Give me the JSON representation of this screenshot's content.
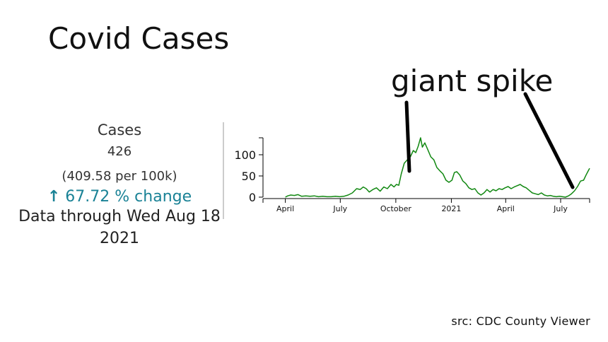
{
  "header": {
    "title": "Covid Cases"
  },
  "annotation": {
    "label": "giant spike"
  },
  "summary": {
    "metric": "Cases",
    "count": "426",
    "rate": "(409.58 per 100k)",
    "change_arrow": "↑",
    "change": "67.72 % change",
    "through": "Data through Wed Aug 18 2021"
  },
  "source": "src: CDC County Viewer",
  "colors": {
    "line": "#118811",
    "change": "#1a8296",
    "axis": "#000000"
  },
  "chart_data": {
    "type": "line",
    "title": "",
    "xlabel": "",
    "ylabel": "",
    "xlim": [
      "2020-02-24",
      "2021-08-18"
    ],
    "ylim": [
      0,
      140
    ],
    "yticks": [
      0,
      50,
      100
    ],
    "xticks": [
      {
        "date": "2020-04-01",
        "label": "April"
      },
      {
        "date": "2020-07-01",
        "label": "July"
      },
      {
        "date": "2020-10-01",
        "label": "October"
      },
      {
        "date": "2021-01-01",
        "label": "2021"
      },
      {
        "date": "2021-04-01",
        "label": "April"
      },
      {
        "date": "2021-07-01",
        "label": "July"
      }
    ],
    "grid": false,
    "series": [
      {
        "points": [
          [
            "2020-04-01",
            0
          ],
          [
            "2020-04-05",
            3
          ],
          [
            "2020-04-10",
            5
          ],
          [
            "2020-04-16",
            4
          ],
          [
            "2020-04-22",
            6
          ],
          [
            "2020-04-28",
            2
          ],
          [
            "2020-05-05",
            3
          ],
          [
            "2020-05-12",
            2
          ],
          [
            "2020-05-19",
            3
          ],
          [
            "2020-05-26",
            1
          ],
          [
            "2020-06-02",
            2
          ],
          [
            "2020-06-09",
            1
          ],
          [
            "2020-06-16",
            1
          ],
          [
            "2020-06-23",
            2
          ],
          [
            "2020-06-30",
            1
          ],
          [
            "2020-07-07",
            2
          ],
          [
            "2020-07-14",
            5
          ],
          [
            "2020-07-21",
            10
          ],
          [
            "2020-07-28",
            20
          ],
          [
            "2020-08-03",
            18
          ],
          [
            "2020-08-08",
            24
          ],
          [
            "2020-08-13",
            20
          ],
          [
            "2020-08-18",
            12
          ],
          [
            "2020-08-24",
            18
          ],
          [
            "2020-08-30",
            22
          ],
          [
            "2020-09-05",
            14
          ],
          [
            "2020-09-11",
            24
          ],
          [
            "2020-09-17",
            20
          ],
          [
            "2020-09-23",
            30
          ],
          [
            "2020-09-28",
            24
          ],
          [
            "2020-10-02",
            30
          ],
          [
            "2020-10-06",
            28
          ],
          [
            "2020-10-10",
            55
          ],
          [
            "2020-10-15",
            80
          ],
          [
            "2020-10-20",
            88
          ],
          [
            "2020-10-25",
            95
          ],
          [
            "2020-10-30",
            110
          ],
          [
            "2020-11-03",
            105
          ],
          [
            "2020-11-07",
            120
          ],
          [
            "2020-11-11",
            140
          ],
          [
            "2020-11-14",
            118
          ],
          [
            "2020-11-18",
            128
          ],
          [
            "2020-11-23",
            112
          ],
          [
            "2020-11-28",
            95
          ],
          [
            "2020-12-03",
            88
          ],
          [
            "2020-12-08",
            70
          ],
          [
            "2020-12-13",
            62
          ],
          [
            "2020-12-18",
            55
          ],
          [
            "2020-12-23",
            40
          ],
          [
            "2020-12-28",
            35
          ],
          [
            "2021-01-02",
            40
          ],
          [
            "2021-01-06",
            58
          ],
          [
            "2021-01-10",
            60
          ],
          [
            "2021-01-15",
            52
          ],
          [
            "2021-01-20",
            38
          ],
          [
            "2021-01-25",
            32
          ],
          [
            "2021-01-30",
            22
          ],
          [
            "2021-02-04",
            18
          ],
          [
            "2021-02-09",
            20
          ],
          [
            "2021-02-14",
            10
          ],
          [
            "2021-02-19",
            5
          ],
          [
            "2021-02-24",
            10
          ],
          [
            "2021-03-01",
            18
          ],
          [
            "2021-03-06",
            12
          ],
          [
            "2021-03-11",
            18
          ],
          [
            "2021-03-16",
            15
          ],
          [
            "2021-03-21",
            20
          ],
          [
            "2021-03-26",
            18
          ],
          [
            "2021-03-31",
            22
          ],
          [
            "2021-04-05",
            25
          ],
          [
            "2021-04-10",
            20
          ],
          [
            "2021-04-15",
            24
          ],
          [
            "2021-04-20",
            27
          ],
          [
            "2021-04-25",
            30
          ],
          [
            "2021-04-30",
            25
          ],
          [
            "2021-05-05",
            22
          ],
          [
            "2021-05-10",
            16
          ],
          [
            "2021-05-15",
            10
          ],
          [
            "2021-05-20",
            8
          ],
          [
            "2021-05-25",
            6
          ],
          [
            "2021-05-30",
            10
          ],
          [
            "2021-06-04",
            5
          ],
          [
            "2021-06-09",
            3
          ],
          [
            "2021-06-14",
            4
          ],
          [
            "2021-06-19",
            2
          ],
          [
            "2021-06-24",
            1
          ],
          [
            "2021-06-29",
            2
          ],
          [
            "2021-07-04",
            1
          ],
          [
            "2021-07-09",
            0
          ],
          [
            "2021-07-14",
            3
          ],
          [
            "2021-07-19",
            8
          ],
          [
            "2021-07-24",
            15
          ],
          [
            "2021-07-29",
            25
          ],
          [
            "2021-08-03",
            38
          ],
          [
            "2021-08-08",
            40
          ],
          [
            "2021-08-12",
            52
          ],
          [
            "2021-08-15",
            60
          ],
          [
            "2021-08-18",
            68
          ]
        ]
      }
    ]
  }
}
